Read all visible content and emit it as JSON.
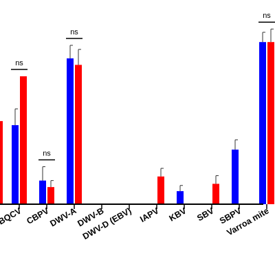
{
  "chart_data": {
    "type": "bar",
    "title": "",
    "xlabel": "",
    "ylabel": "",
    "ylim": [
      0,
      100
    ],
    "categories": [
      "BQCV",
      "CBPV",
      "DWV-A",
      "DWV-B",
      "DWV-D (EBV)",
      "IAPV",
      "KBV",
      "SBV",
      "SBPV",
      "Varroa mite"
    ],
    "series": [
      {
        "color": "#0000ff",
        "values": [
          48.5,
          14.5,
          89.5,
          0,
          0,
          0,
          8.0,
          0,
          33.5,
          99.5
        ],
        "errors": [
          10.0,
          8.5,
          8.0,
          0,
          0,
          0,
          3.5,
          0,
          6.0,
          6.0
        ]
      },
      {
        "color": "#ff0000",
        "values": [
          78.5,
          10.5,
          85.5,
          0,
          0,
          17.0,
          0,
          12.5,
          0,
          99.5
        ],
        "errors": [
          0,
          4.0,
          9.5,
          0,
          0,
          5.0,
          0,
          5.0,
          0,
          8.0
        ]
      }
    ],
    "partial_bar": {
      "color": "#ff0000",
      "value": 51.0
    },
    "annotations": [
      {
        "category": "BQCV",
        "text": "ns"
      },
      {
        "category": "CBPV",
        "text": "ns"
      },
      {
        "category": "DWV-A",
        "text": "ns"
      },
      {
        "category": "Varroa mite",
        "text": "ns"
      }
    ]
  }
}
